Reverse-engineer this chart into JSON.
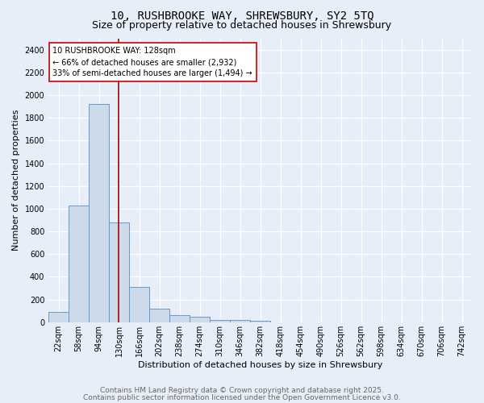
{
  "title_line1": "10, RUSHBROOKE WAY, SHREWSBURY, SY2 5TQ",
  "title_line2": "Size of property relative to detached houses in Shrewsbury",
  "xlabel": "Distribution of detached houses by size in Shrewsbury",
  "ylabel": "Number of detached properties",
  "bar_labels": [
    "22sqm",
    "58sqm",
    "94sqm",
    "130sqm",
    "166sqm",
    "202sqm",
    "238sqm",
    "274sqm",
    "310sqm",
    "346sqm",
    "382sqm",
    "418sqm",
    "454sqm",
    "490sqm",
    "526sqm",
    "562sqm",
    "598sqm",
    "634sqm",
    "670sqm",
    "706sqm",
    "742sqm"
  ],
  "bar_values": [
    90,
    1030,
    1920,
    880,
    310,
    120,
    60,
    45,
    20,
    20,
    10,
    0,
    0,
    0,
    0,
    0,
    0,
    0,
    0,
    0,
    0
  ],
  "bar_color": "#ccdaea",
  "bar_edge_color": "#6699cc",
  "background_color": "#e8eef8",
  "vline_color": "#aa0000",
  "annotation_text": "10 RUSHBROOKE WAY: 128sqm\n← 66% of detached houses are smaller (2,932)\n33% of semi-detached houses are larger (1,494) →",
  "annotation_box_color": "#ffffff",
  "annotation_border_color": "#cc0000",
  "ylim_max": 2500,
  "yticks": [
    0,
    200,
    400,
    600,
    800,
    1000,
    1200,
    1400,
    1600,
    1800,
    2000,
    2200,
    2400
  ],
  "footer_line1": "Contains HM Land Registry data © Crown copyright and database right 2025.",
  "footer_line2": "Contains public sector information licensed under the Open Government Licence v3.0.",
  "title1_fontsize": 10,
  "title2_fontsize": 9,
  "label_fontsize": 8,
  "tick_fontsize": 7,
  "annot_fontsize": 7,
  "footer_fontsize": 6.5
}
